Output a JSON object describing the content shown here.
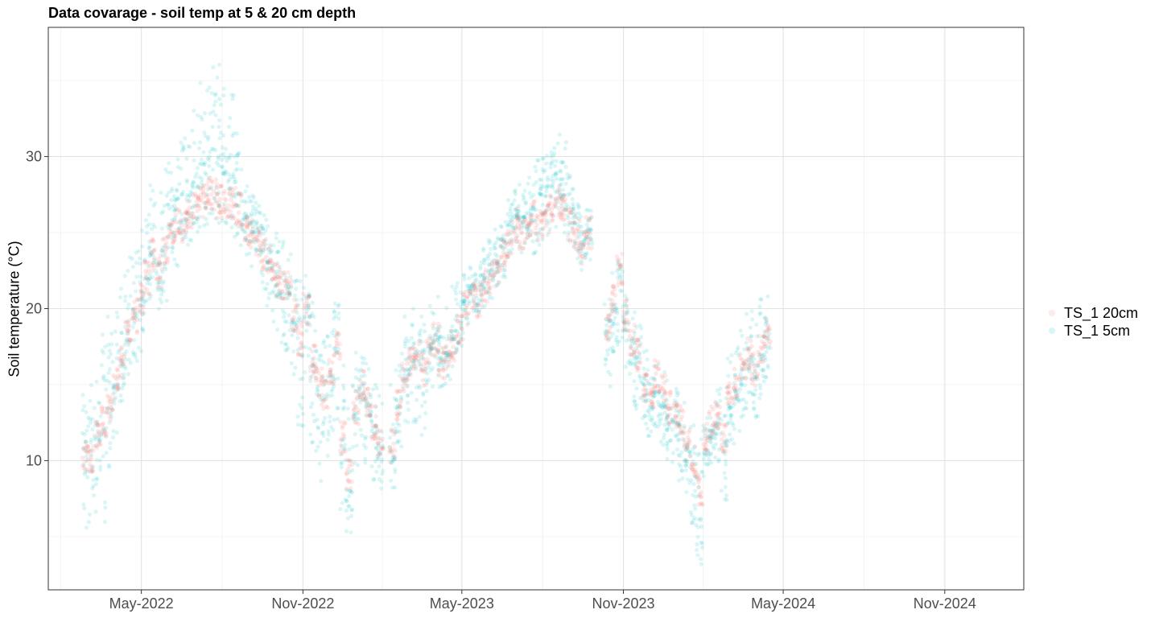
{
  "chart_data": {
    "type": "scatter",
    "title": "Data covarage - soil temp at 5 & 20 cm depth",
    "xlabel": "",
    "ylabel": "Soil temperature (°C)",
    "x_ticks": [
      "May-2022",
      "Nov-2022",
      "May-2023",
      "Nov-2023",
      "May-2024",
      "Nov-2024"
    ],
    "y_ticks": [
      10,
      20,
      30
    ],
    "xlim": [
      "2022-01-15",
      "2025-01-30"
    ],
    "ylim": [
      1.5,
      38.5
    ],
    "grid": true,
    "legend_position": "right",
    "series": [
      {
        "name": "TS_1 20cm",
        "color": "#F8766D",
        "points": [
          [
            "2022-02-26",
            10.5
          ],
          [
            "2022-03-05",
            10.0
          ],
          [
            "2022-03-12",
            11.5
          ],
          [
            "2022-03-19",
            12.5
          ],
          [
            "2022-03-26",
            13.5
          ],
          [
            "2022-04-02",
            15.0
          ],
          [
            "2022-04-09",
            16.5
          ],
          [
            "2022-04-16",
            18.5
          ],
          [
            "2022-04-23",
            19.5
          ],
          [
            "2022-04-30",
            20.5
          ],
          [
            "2022-05-07",
            22.0
          ],
          [
            "2022-05-14",
            23.5
          ],
          [
            "2022-05-21",
            22.5
          ],
          [
            "2022-05-28",
            24.0
          ],
          [
            "2022-06-04",
            25.0
          ],
          [
            "2022-06-11",
            25.5
          ],
          [
            "2022-06-18",
            25.5
          ],
          [
            "2022-06-25",
            26.0
          ],
          [
            "2022-07-02",
            26.5
          ],
          [
            "2022-07-09",
            27.0
          ],
          [
            "2022-07-16",
            27.5
          ],
          [
            "2022-07-23",
            27.5
          ],
          [
            "2022-07-30",
            27.0
          ],
          [
            "2022-08-06",
            27.0
          ],
          [
            "2022-08-13",
            27.0
          ],
          [
            "2022-08-20",
            26.5
          ],
          [
            "2022-08-27",
            25.5
          ],
          [
            "2022-09-03",
            25.0
          ],
          [
            "2022-09-10",
            24.5
          ],
          [
            "2022-09-17",
            23.5
          ],
          [
            "2022-09-24",
            23.0
          ],
          [
            "2022-10-01",
            22.0
          ],
          [
            "2022-10-08",
            21.5
          ],
          [
            "2022-10-15",
            21.5
          ],
          [
            "2022-10-22",
            19.5
          ],
          [
            "2022-10-29",
            18.0
          ],
          [
            "2022-11-05",
            20.0
          ],
          [
            "2022-11-12",
            16.5
          ],
          [
            "2022-11-19",
            15.0
          ],
          [
            "2022-11-26",
            14.5
          ],
          [
            "2022-12-03",
            16.0
          ],
          [
            "2022-12-10",
            17.5
          ],
          [
            "2022-12-17",
            11.5
          ],
          [
            "2022-12-24",
            9.0
          ],
          [
            "2022-12-31",
            13.5
          ],
          [
            "2023-01-07",
            15.0
          ],
          [
            "2023-01-14",
            14.0
          ],
          [
            "2023-01-21",
            12.5
          ],
          [
            "2023-01-28",
            11.0
          ],
          [
            "2023-02-11",
            11.0
          ],
          [
            "2023-02-18",
            13.5
          ],
          [
            "2023-02-25",
            15.5
          ],
          [
            "2023-03-04",
            16.5
          ],
          [
            "2023-03-11",
            17.0
          ],
          [
            "2023-03-18",
            16.0
          ],
          [
            "2023-03-25",
            17.5
          ],
          [
            "2023-04-01",
            18.0
          ],
          [
            "2023-04-08",
            16.5
          ],
          [
            "2023-04-15",
            17.0
          ],
          [
            "2023-04-22",
            17.5
          ],
          [
            "2023-04-29",
            18.5
          ],
          [
            "2023-05-06",
            20.0
          ],
          [
            "2023-05-13",
            21.0
          ],
          [
            "2023-05-20",
            20.5
          ],
          [
            "2023-05-27",
            21.5
          ],
          [
            "2023-06-03",
            22.0
          ],
          [
            "2023-06-10",
            22.5
          ],
          [
            "2023-06-17",
            23.5
          ],
          [
            "2023-06-24",
            24.5
          ],
          [
            "2023-07-01",
            25.5
          ],
          [
            "2023-07-08",
            25.0
          ],
          [
            "2023-07-15",
            25.5
          ],
          [
            "2023-07-22",
            26.0
          ],
          [
            "2023-07-29",
            25.5
          ],
          [
            "2023-08-05",
            26.0
          ],
          [
            "2023-08-12",
            26.5
          ],
          [
            "2023-08-19",
            27.0
          ],
          [
            "2023-08-26",
            26.5
          ],
          [
            "2023-09-02",
            25.5
          ],
          [
            "2023-09-09",
            25.0
          ],
          [
            "2023-09-16",
            24.0
          ],
          [
            "2023-09-23",
            25.0
          ],
          [
            "2023-10-14",
            18.5
          ],
          [
            "2023-10-21",
            20.5
          ],
          [
            "2023-10-28",
            22.5
          ],
          [
            "2023-11-04",
            19.5
          ],
          [
            "2023-11-11",
            18.0
          ],
          [
            "2023-11-18",
            17.0
          ],
          [
            "2023-11-25",
            15.0
          ],
          [
            "2023-12-02",
            14.5
          ],
          [
            "2023-12-09",
            15.5
          ],
          [
            "2023-12-16",
            14.5
          ],
          [
            "2023-12-23",
            13.5
          ],
          [
            "2023-12-30",
            13.0
          ],
          [
            "2024-01-06",
            12.5
          ],
          [
            "2024-01-13",
            11.0
          ],
          [
            "2024-01-20",
            10.0
          ],
          [
            "2024-01-27",
            8.0
          ],
          [
            "2024-02-03",
            11.5
          ],
          [
            "2024-02-10",
            12.5
          ],
          [
            "2024-02-17",
            13.0
          ],
          [
            "2024-02-24",
            11.5
          ],
          [
            "2024-03-02",
            14.0
          ],
          [
            "2024-03-09",
            15.0
          ],
          [
            "2024-03-16",
            16.0
          ],
          [
            "2024-03-23",
            17.0
          ],
          [
            "2024-03-30",
            16.0
          ],
          [
            "2024-04-06",
            17.5
          ],
          [
            "2024-04-13",
            18.5
          ]
        ]
      },
      {
        "name": "TS_1 5cm",
        "color": "#00BFC4",
        "points": [
          [
            "2022-02-26",
            10.5,
            4.5,
            15.5
          ],
          [
            "2022-03-05",
            10.0,
            5.5,
            15.0
          ],
          [
            "2022-03-12",
            11.5,
            6.5,
            18.0
          ],
          [
            "2022-03-19",
            12.0,
            5.5,
            19.5
          ],
          [
            "2022-03-26",
            13.5,
            8.0,
            20.5
          ],
          [
            "2022-04-02",
            15.0,
            11.0,
            21.5
          ],
          [
            "2022-04-09",
            16.5,
            13.0,
            22.5
          ],
          [
            "2022-04-16",
            18.5,
            15.5,
            24.0
          ],
          [
            "2022-04-23",
            19.5,
            16.5,
            24.5
          ],
          [
            "2022-04-30",
            20.5,
            17.0,
            26.0
          ],
          [
            "2022-05-07",
            22.0,
            19.0,
            27.5
          ],
          [
            "2022-05-14",
            23.5,
            20.0,
            29.0
          ],
          [
            "2022-05-21",
            22.5,
            19.5,
            28.0
          ],
          [
            "2022-05-28",
            24.0,
            20.5,
            29.5
          ],
          [
            "2022-06-04",
            25.5,
            22.5,
            30.0
          ],
          [
            "2022-06-11",
            26.0,
            22.5,
            30.5
          ],
          [
            "2022-06-18",
            26.5,
            23.5,
            31.5
          ],
          [
            "2022-06-25",
            27.5,
            24.0,
            32.5
          ],
          [
            "2022-07-02",
            28.0,
            24.5,
            33.5
          ],
          [
            "2022-07-09",
            29.5,
            25.0,
            35.0
          ],
          [
            "2022-07-16",
            30.0,
            25.5,
            35.5
          ],
          [
            "2022-07-23",
            30.5,
            25.5,
            36.0
          ],
          [
            "2022-07-30",
            30.0,
            25.0,
            36.5
          ],
          [
            "2022-08-06",
            29.0,
            25.0,
            35.0
          ],
          [
            "2022-08-13",
            28.5,
            24.5,
            34.5
          ],
          [
            "2022-08-20",
            27.5,
            24.0,
            32.0
          ],
          [
            "2022-08-27",
            26.0,
            23.5,
            28.5
          ],
          [
            "2022-09-03",
            25.5,
            22.5,
            27.5
          ],
          [
            "2022-09-10",
            25.0,
            21.5,
            27.0
          ],
          [
            "2022-09-17",
            24.0,
            20.5,
            26.5
          ],
          [
            "2022-09-24",
            23.0,
            20.0,
            26.0
          ],
          [
            "2022-10-01",
            21.5,
            18.5,
            25.0
          ],
          [
            "2022-10-08",
            21.0,
            17.5,
            24.5
          ],
          [
            "2022-10-15",
            21.0,
            17.0,
            24.0
          ],
          [
            "2022-10-22",
            19.0,
            15.5,
            22.5
          ],
          [
            "2022-10-29",
            17.5,
            12.0,
            22.0
          ],
          [
            "2022-11-05",
            20.0,
            15.5,
            22.5
          ],
          [
            "2022-11-12",
            16.0,
            11.0,
            20.5
          ],
          [
            "2022-11-19",
            13.0,
            8.5,
            18.0
          ],
          [
            "2022-11-26",
            14.0,
            9.5,
            18.5
          ],
          [
            "2022-12-03",
            15.5,
            11.5,
            20.0
          ],
          [
            "2022-12-10",
            17.0,
            12.5,
            20.5
          ],
          [
            "2022-12-17",
            11.0,
            6.5,
            16.5
          ],
          [
            "2022-12-24",
            8.0,
            5.0,
            13.5
          ],
          [
            "2022-12-31",
            13.0,
            9.0,
            17.5
          ],
          [
            "2023-01-07",
            14.5,
            10.5,
            17.0
          ],
          [
            "2023-01-14",
            13.5,
            9.5,
            16.5
          ],
          [
            "2023-01-21",
            12.0,
            8.5,
            15.5
          ],
          [
            "2023-01-28",
            11.0,
            8.0,
            15.0
          ],
          [
            "2023-02-11",
            10.5,
            8.0,
            15.0
          ],
          [
            "2023-02-18",
            13.5,
            10.5,
            18.0
          ],
          [
            "2023-02-25",
            15.5,
            12.5,
            19.5
          ],
          [
            "2023-03-04",
            16.0,
            12.5,
            20.0
          ],
          [
            "2023-03-11",
            16.5,
            12.0,
            20.5
          ],
          [
            "2023-03-18",
            16.0,
            11.5,
            19.5
          ],
          [
            "2023-03-25",
            17.5,
            14.5,
            20.5
          ],
          [
            "2023-04-01",
            18.0,
            14.5,
            21.0
          ],
          [
            "2023-04-08",
            16.5,
            14.5,
            19.5
          ],
          [
            "2023-04-15",
            17.0,
            15.0,
            20.5
          ],
          [
            "2023-04-22",
            18.0,
            16.0,
            21.5
          ],
          [
            "2023-04-29",
            19.0,
            16.5,
            22.0
          ],
          [
            "2023-05-06",
            20.5,
            18.5,
            22.5
          ],
          [
            "2023-05-13",
            21.5,
            19.5,
            23.5
          ],
          [
            "2023-05-20",
            21.0,
            19.5,
            23.0
          ],
          [
            "2023-05-27",
            22.0,
            20.0,
            24.0
          ],
          [
            "2023-06-03",
            22.5,
            20.5,
            25.0
          ],
          [
            "2023-06-10",
            23.0,
            21.0,
            25.5
          ],
          [
            "2023-06-17",
            24.5,
            22.0,
            26.5
          ],
          [
            "2023-06-24",
            25.5,
            23.0,
            27.5
          ],
          [
            "2023-07-01",
            26.0,
            24.0,
            28.0
          ],
          [
            "2023-07-08",
            26.0,
            23.5,
            28.5
          ],
          [
            "2023-07-15",
            26.5,
            24.0,
            29.0
          ],
          [
            "2023-07-22",
            27.0,
            23.5,
            29.5
          ],
          [
            "2023-07-29",
            27.5,
            24.0,
            30.0
          ],
          [
            "2023-08-05",
            28.0,
            24.5,
            31.0
          ],
          [
            "2023-08-12",
            28.5,
            25.0,
            31.5
          ],
          [
            "2023-08-19",
            28.5,
            25.0,
            32.0
          ],
          [
            "2023-08-26",
            27.5,
            24.5,
            31.5
          ],
          [
            "2023-09-02",
            26.5,
            23.5,
            29.0
          ],
          [
            "2023-09-09",
            25.5,
            23.0,
            27.0
          ],
          [
            "2023-09-16",
            24.5,
            22.0,
            26.5
          ],
          [
            "2023-09-23",
            25.0,
            23.0,
            26.5
          ],
          [
            "2023-10-14",
            18.5,
            14.5,
            21.0
          ],
          [
            "2023-10-21",
            20.0,
            17.0,
            22.5
          ],
          [
            "2023-10-28",
            22.0,
            17.5,
            23.5
          ],
          [
            "2023-11-04",
            19.0,
            12.5,
            21.0
          ],
          [
            "2023-11-11",
            17.5,
            13.5,
            20.0
          ],
          [
            "2023-11-18",
            16.5,
            13.0,
            19.0
          ],
          [
            "2023-11-25",
            14.5,
            12.0,
            17.5
          ],
          [
            "2023-12-02",
            13.5,
            11.5,
            16.0
          ],
          [
            "2023-12-09",
            14.5,
            12.0,
            16.5
          ],
          [
            "2023-12-16",
            13.5,
            11.0,
            16.0
          ],
          [
            "2023-12-23",
            12.0,
            10.0,
            15.5
          ],
          [
            "2023-12-30",
            12.5,
            9.5,
            15.0
          ],
          [
            "2024-01-06",
            11.5,
            8.5,
            14.0
          ],
          [
            "2024-01-13",
            10.0,
            7.5,
            13.0
          ],
          [
            "2024-01-20",
            9.0,
            5.5,
            12.5
          ],
          [
            "2024-01-27",
            6.0,
            2.5,
            11.5
          ],
          [
            "2024-02-03",
            10.5,
            8.0,
            13.5
          ],
          [
            "2024-02-10",
            12.0,
            9.5,
            15.0
          ],
          [
            "2024-02-17",
            12.5,
            9.5,
            15.5
          ],
          [
            "2024-02-24",
            11.0,
            7.0,
            15.0
          ],
          [
            "2024-03-02",
            13.5,
            10.5,
            17.0
          ],
          [
            "2024-03-09",
            14.5,
            11.0,
            18.0
          ],
          [
            "2024-03-16",
            15.5,
            12.0,
            19.5
          ],
          [
            "2024-03-23",
            16.5,
            12.5,
            20.0
          ],
          [
            "2024-03-30",
            15.5,
            12.5,
            19.5
          ],
          [
            "2024-04-06",
            17.0,
            14.0,
            21.0
          ],
          [
            "2024-04-13",
            18.5,
            15.0,
            21.0
          ]
        ]
      }
    ]
  }
}
